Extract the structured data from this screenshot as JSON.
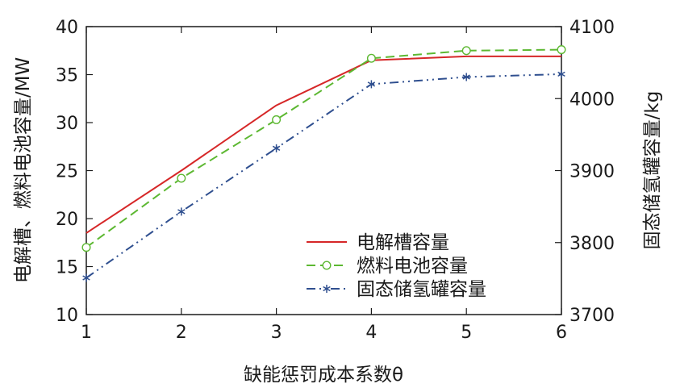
{
  "chart_data": {
    "type": "line",
    "title": "",
    "xlabel": "缺能惩罚成本系数θ",
    "ylabel_left": "电解槽、燃料电池容量/MW",
    "ylabel_right": "固态储氢罐容量/kg",
    "x": [
      1,
      2,
      3,
      4,
      5,
      6
    ],
    "x_ticks": [
      "1",
      "2",
      "3",
      "4",
      "5",
      "6"
    ],
    "xlim": [
      1,
      6
    ],
    "ylim_left": [
      10,
      40
    ],
    "ylim_right": [
      3700,
      4100
    ],
    "y_ticks_left": [
      "10",
      "15",
      "20",
      "25",
      "30",
      "35",
      "40"
    ],
    "y_ticks_right": [
      "3700",
      "3800",
      "3900",
      "4000",
      "4100"
    ],
    "grid": false,
    "legend_position": "lower-right",
    "series": [
      {
        "name": "电解槽容量",
        "axis": "left",
        "values": [
          18.5,
          25.0,
          31.8,
          36.5,
          36.9,
          36.9
        ],
        "color": "#d62728",
        "line": "solid",
        "marker": "none"
      },
      {
        "name": "燃料电池容量",
        "axis": "left",
        "values": [
          17.0,
          24.2,
          30.3,
          36.7,
          37.5,
          37.6
        ],
        "color": "#5db832",
        "line": "dashed",
        "marker": "circle"
      },
      {
        "name": "固态储氢罐容量",
        "axis": "right",
        "values": [
          3751,
          3843,
          3931,
          4020,
          4030,
          4034
        ],
        "color": "#2f4f8f",
        "line": "dashdotdot",
        "marker": "asterisk"
      }
    ]
  }
}
